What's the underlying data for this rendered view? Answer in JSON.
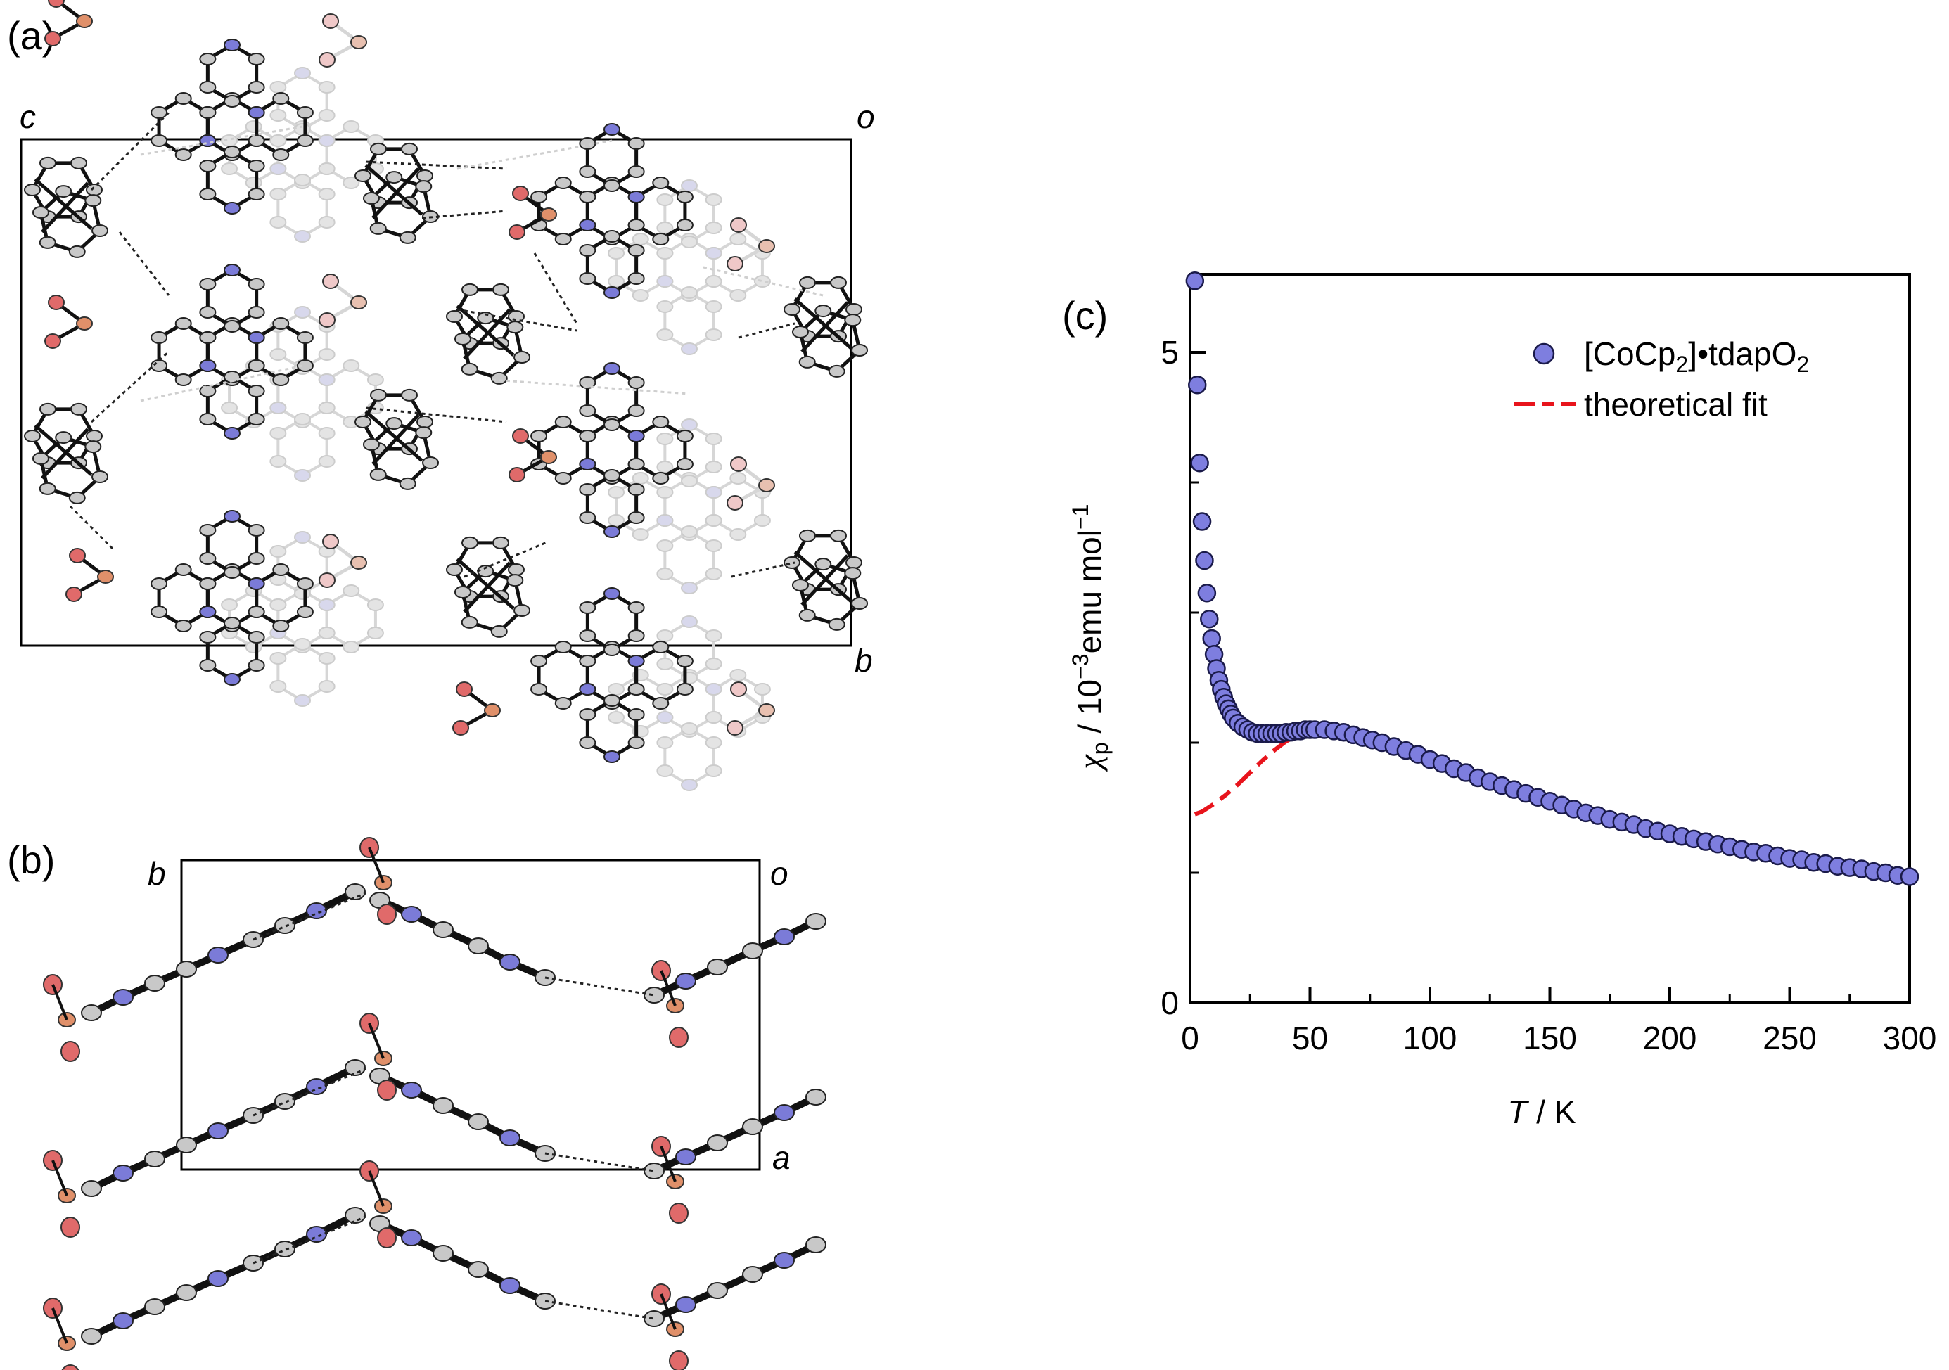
{
  "figure": {
    "panel_a": {
      "label": "(a)",
      "axis_labels": {
        "c": "c",
        "o": "o",
        "b": "b"
      }
    },
    "panel_b": {
      "label": "(b)",
      "axis_labels": {
        "b": "b",
        "o": "o",
        "a": "a"
      }
    },
    "panel_c": {
      "label": "(c)"
    },
    "colors": {
      "carbon": "#c8c8c8",
      "nitrogen": "#7b7bd8",
      "oxygen": "#e06a6a",
      "sulfur": "#e0906a",
      "bond": "#111111",
      "faded": "#d6d6d6",
      "marker": "#7e7edf",
      "fit": "#e8141c"
    }
  },
  "chart_data": {
    "type": "scatter",
    "title": "",
    "xlabel_italic": "T",
    "xlabel_rest": " / K",
    "ylabel_symbol": "χ",
    "ylabel_sub": "p",
    "ylabel_mid": " / 10",
    "ylabel_exp1": "−3",
    "ylabel_unit": "emu mol",
    "ylabel_exp2": "−1",
    "xlim": [
      0,
      300
    ],
    "ylim": [
      0,
      5.6
    ],
    "xticks": [
      0,
      50,
      100,
      150,
      200,
      250,
      300
    ],
    "xtick_labels": [
      "0",
      "50",
      "100",
      "150",
      "200",
      "250",
      "300"
    ],
    "yticks": [
      0,
      5
    ],
    "ytick_labels": [
      "0",
      "5"
    ],
    "grid": false,
    "legend_position": "top-right",
    "legend": [
      {
        "name_main": "[CoCp",
        "name_sub": "2",
        "name_mid": "]•tdapO",
        "name_sub2": "2",
        "style": "marker"
      },
      {
        "name": "theoretical fit",
        "style": "dash-dot line"
      }
    ],
    "series": [
      {
        "name": "[CoCp2]•tdapO2",
        "style": "marker",
        "x": [
          2,
          3,
          4,
          5,
          6,
          7,
          8,
          9,
          10,
          11,
          12,
          13,
          14,
          15,
          16,
          17,
          18,
          20,
          22,
          24,
          26,
          28,
          30,
          32,
          34,
          36,
          38,
          40,
          42,
          44,
          46,
          48,
          50,
          52,
          56,
          60,
          64,
          68,
          72,
          76,
          80,
          85,
          90,
          95,
          100,
          105,
          110,
          115,
          120,
          125,
          130,
          135,
          140,
          145,
          150,
          155,
          160,
          165,
          170,
          175,
          180,
          185,
          190,
          195,
          200,
          205,
          210,
          215,
          220,
          225,
          230,
          235,
          240,
          245,
          250,
          255,
          260,
          265,
          270,
          275,
          280,
          285,
          290,
          295,
          300
        ],
        "y": [
          5.55,
          4.75,
          4.15,
          3.7,
          3.4,
          3.15,
          2.95,
          2.8,
          2.68,
          2.57,
          2.48,
          2.41,
          2.35,
          2.3,
          2.26,
          2.22,
          2.19,
          2.15,
          2.12,
          2.1,
          2.08,
          2.07,
          2.07,
          2.07,
          2.07,
          2.07,
          2.07,
          2.08,
          2.08,
          2.09,
          2.09,
          2.1,
          2.1,
          2.1,
          2.1,
          2.09,
          2.08,
          2.06,
          2.04,
          2.02,
          2.0,
          1.97,
          1.94,
          1.91,
          1.87,
          1.84,
          1.8,
          1.77,
          1.73,
          1.7,
          1.67,
          1.64,
          1.61,
          1.58,
          1.55,
          1.52,
          1.49,
          1.46,
          1.44,
          1.41,
          1.39,
          1.37,
          1.34,
          1.32,
          1.3,
          1.28,
          1.26,
          1.24,
          1.22,
          1.2,
          1.18,
          1.16,
          1.15,
          1.13,
          1.11,
          1.1,
          1.08,
          1.07,
          1.05,
          1.04,
          1.03,
          1.01,
          1.0,
          0.98,
          0.97
        ]
      },
      {
        "name": "theoretical fit",
        "style": "dash-dot line",
        "x": [
          2,
          5,
          10,
          15,
          20,
          25,
          30,
          35,
          40,
          45,
          50,
          55,
          60,
          70,
          80,
          90,
          100,
          110,
          120,
          130,
          140,
          150,
          160,
          170,
          180,
          190,
          200,
          210,
          220,
          230,
          240,
          250,
          260,
          270,
          280,
          290,
          300
        ],
        "y": [
          1.45,
          1.47,
          1.53,
          1.6,
          1.68,
          1.77,
          1.86,
          1.94,
          2.01,
          2.06,
          2.09,
          2.1,
          2.1,
          2.06,
          2.0,
          1.93,
          1.86,
          1.79,
          1.72,
          1.66,
          1.6,
          1.54,
          1.49,
          1.44,
          1.39,
          1.35,
          1.3,
          1.26,
          1.22,
          1.19,
          1.16,
          1.12,
          1.09,
          1.06,
          1.03,
          1.0,
          0.97
        ]
      }
    ]
  }
}
